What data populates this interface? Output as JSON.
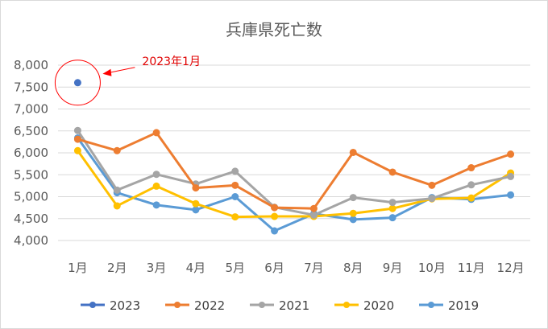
{
  "chart_data": {
    "type": "line",
    "title": "兵庫県死亡数",
    "categories": [
      "1月",
      "2月",
      "3月",
      "4月",
      "5月",
      "6月",
      "7月",
      "8月",
      "9月",
      "10月",
      "11月",
      "12月"
    ],
    "y_ticks": [
      "4,000",
      "4,500",
      "5,000",
      "5,500",
      "6,000",
      "6,500",
      "7,000",
      "7,500",
      "8,000"
    ],
    "ylim": [
      4000,
      8000
    ],
    "grid": true,
    "legend_position": "bottom",
    "series": [
      {
        "name": "2023",
        "color": "#4472c4",
        "values": [
          7600,
          null,
          null,
          null,
          null,
          null,
          null,
          null,
          null,
          null,
          null,
          null
        ]
      },
      {
        "name": "2022",
        "color": "#ed7d31",
        "values": [
          6310,
          6050,
          6460,
          5200,
          5260,
          4750,
          4730,
          6010,
          5560,
          5260,
          5660,
          5970
        ]
      },
      {
        "name": "2021",
        "color": "#a5a5a5",
        "values": [
          6510,
          5150,
          5510,
          5290,
          5580,
          4760,
          4580,
          4980,
          4870,
          4960,
          5270,
          5460
        ]
      },
      {
        "name": "2020",
        "color": "#ffc000",
        "values": [
          6050,
          4790,
          5240,
          4840,
          4540,
          4550,
          4550,
          4620,
          4730,
          4950,
          4970,
          5540
        ]
      },
      {
        "name": "2019",
        "color": "#5b9bd5",
        "values": [
          6340,
          5090,
          4810,
          4700,
          5000,
          4220,
          4610,
          4480,
          4520,
          4980,
          4940,
          5040
        ]
      }
    ],
    "annotation": {
      "text": "2023年1月",
      "color": "#ff0000"
    }
  }
}
